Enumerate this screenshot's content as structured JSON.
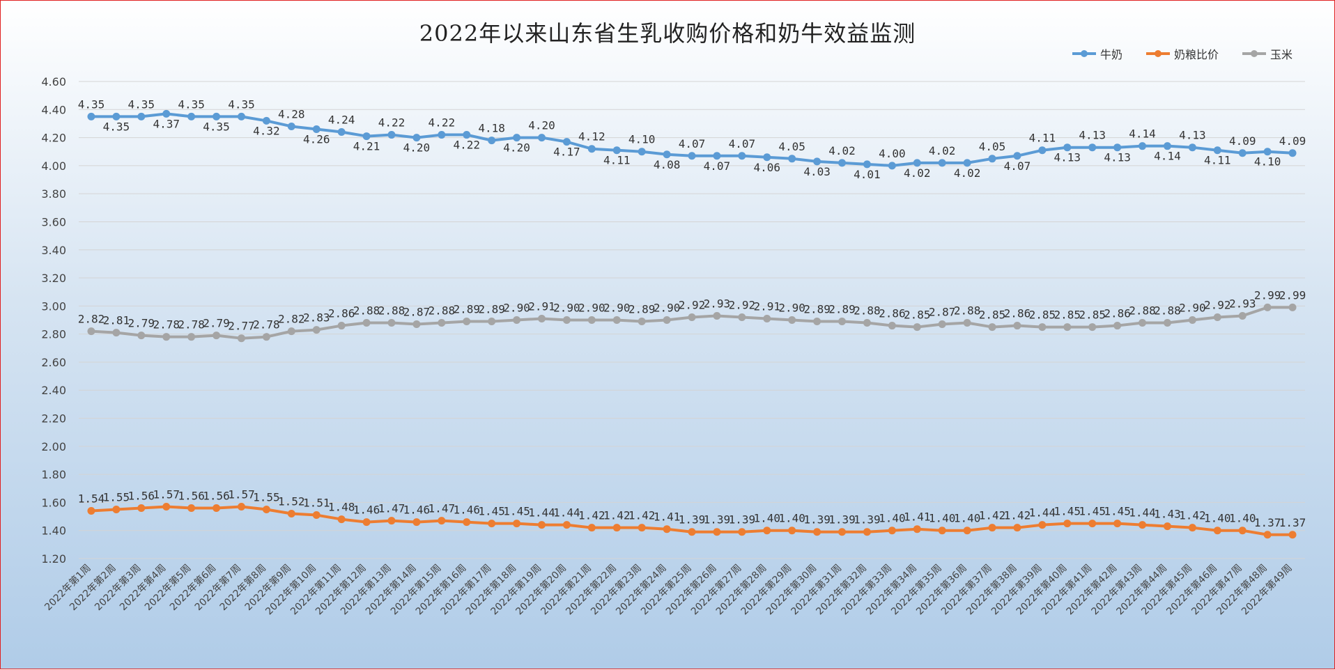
{
  "chart_data": {
    "type": "line",
    "title": "2022年以来山东省生乳收购价格和奶牛效益监测",
    "categories": [
      "2022年第1周",
      "2022年第2周",
      "2022年第3周",
      "2022年第4周",
      "2022年第5周",
      "2022年第6周",
      "2022年第7周",
      "2022年第8周",
      "2022年第9周",
      "2022年第10周",
      "2022年第11周",
      "2022年第12周",
      "2022年第13周",
      "2022年第14周",
      "2022年第15周",
      "2022年第16周",
      "2022年第17周",
      "2022年第18周",
      "2022年第19周",
      "2022年第20周",
      "2022年第21周",
      "2022年第22周",
      "2022年第23周",
      "2022年第24周",
      "2022年第25周",
      "2022年第26周",
      "2022年第27周",
      "2022年第28周",
      "2022年第29周",
      "2022年第30周",
      "2022年第31周",
      "2022年第32周",
      "2022年第33周",
      "2022年第34周",
      "2022年第35周",
      "2022年第36周",
      "2022年第37周",
      "2022年第38周",
      "2022年第39周",
      "2022年第40周",
      "2022年第41周",
      "2022年第42周",
      "2022年第43周",
      "2022年第44周",
      "2022年第45周",
      "2022年第46周",
      "2022年第47周",
      "2022年第48周",
      "2022年第49周"
    ],
    "series": [
      {
        "name": "牛奶",
        "color": "#5b9bd5",
        "values": [
          4.35,
          4.35,
          4.35,
          4.37,
          4.35,
          4.35,
          4.35,
          4.32,
          4.28,
          4.26,
          4.24,
          4.21,
          4.22,
          4.2,
          4.22,
          4.22,
          4.18,
          4.2,
          4.2,
          4.17,
          4.12,
          4.11,
          4.1,
          4.08,
          4.07,
          4.07,
          4.07,
          4.06,
          4.05,
          4.03,
          4.02,
          4.01,
          4.0,
          4.02,
          4.02,
          4.02,
          4.05,
          4.07,
          4.11,
          4.13,
          4.13,
          4.13,
          4.14,
          4.14,
          4.13,
          4.11,
          4.09,
          4.1,
          4.09
        ]
      },
      {
        "name": "奶粮比价",
        "color": "#ed7d31",
        "values": [
          1.54,
          1.55,
          1.56,
          1.57,
          1.56,
          1.56,
          1.57,
          1.55,
          1.52,
          1.51,
          1.48,
          1.46,
          1.47,
          1.46,
          1.47,
          1.46,
          1.45,
          1.45,
          1.44,
          1.44,
          1.42,
          1.42,
          1.42,
          1.41,
          1.39,
          1.39,
          1.39,
          1.4,
          1.4,
          1.39,
          1.39,
          1.39,
          1.4,
          1.41,
          1.4,
          1.4,
          1.42,
          1.42,
          1.44,
          1.45,
          1.45,
          1.45,
          1.44,
          1.43,
          1.42,
          1.4,
          1.4,
          1.37,
          1.37
        ]
      },
      {
        "name": "玉米",
        "color": "#a5a5a5",
        "values": [
          2.82,
          2.81,
          2.79,
          2.78,
          2.78,
          2.79,
          2.77,
          2.78,
          2.82,
          2.83,
          2.86,
          2.88,
          2.88,
          2.87,
          2.88,
          2.89,
          2.89,
          2.9,
          2.91,
          2.9,
          2.9,
          2.9,
          2.89,
          2.9,
          2.92,
          2.93,
          2.92,
          2.91,
          2.9,
          2.89,
          2.89,
          2.88,
          2.86,
          2.85,
          2.87,
          2.88,
          2.85,
          2.86,
          2.85,
          2.85,
          2.85,
          2.86,
          2.88,
          2.88,
          2.9,
          2.92,
          2.93,
          2.99,
          2.99
        ]
      }
    ],
    "yticks": [
      "1.20",
      "1.40",
      "1.60",
      "1.80",
      "2.00",
      "2.20",
      "2.40",
      "2.60",
      "2.80",
      "3.00",
      "3.20",
      "3.40",
      "3.60",
      "3.80",
      "4.00",
      "4.20",
      "4.40",
      "4.60"
    ],
    "ylim": [
      1.2,
      4.6
    ],
    "grid": true,
    "legend_position": "top-right"
  }
}
